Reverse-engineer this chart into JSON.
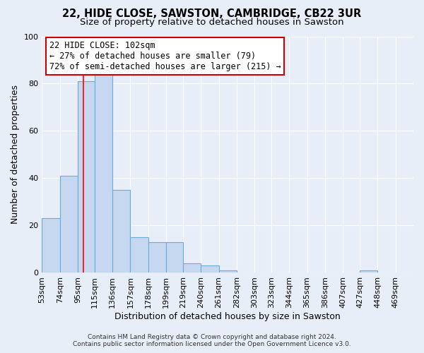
{
  "title": "22, HIDE CLOSE, SAWSTON, CAMBRIDGE, CB22 3UR",
  "subtitle": "Size of property relative to detached houses in Sawston",
  "xlabel": "Distribution of detached houses by size in Sawston",
  "ylabel": "Number of detached properties",
  "bar_labels": [
    "53sqm",
    "74sqm",
    "95sqm",
    "115sqm",
    "136sqm",
    "157sqm",
    "178sqm",
    "199sqm",
    "219sqm",
    "240sqm",
    "261sqm",
    "282sqm",
    "303sqm",
    "323sqm",
    "344sqm",
    "365sqm",
    "386sqm",
    "407sqm",
    "427sqm",
    "448sqm",
    "469sqm"
  ],
  "bar_values": [
    23,
    41,
    81,
    84,
    35,
    15,
    13,
    13,
    4,
    3,
    1,
    0,
    0,
    0,
    0,
    0,
    0,
    0,
    1,
    0,
    0
  ],
  "bar_color": "#c5d8f0",
  "bar_edge_color": "#6aaad4",
  "ylim": [
    0,
    100
  ],
  "yticks": [
    0,
    20,
    40,
    60,
    80,
    100
  ],
  "red_line_x": 102,
  "bin_edges": [
    53,
    74,
    95,
    115,
    136,
    157,
    178,
    199,
    219,
    240,
    261,
    282,
    303,
    323,
    344,
    365,
    386,
    407,
    427,
    448,
    469,
    490
  ],
  "annotation_line1": "22 HIDE CLOSE: 102sqm",
  "annotation_line2": "← 27% of detached houses are smaller (79)",
  "annotation_line3": "72% of semi-detached houses are larger (215) →",
  "annotation_box_color": "#ffffff",
  "annotation_border_color": "#cc0000",
  "footer_line1": "Contains HM Land Registry data © Crown copyright and database right 2024.",
  "footer_line2": "Contains public sector information licensed under the Open Government Licence v3.0.",
  "background_color": "#e8eef8",
  "grid_color": "#ffffff",
  "title_fontsize": 10.5,
  "subtitle_fontsize": 9.5,
  "axis_label_fontsize": 9,
  "tick_fontsize": 8,
  "annotation_fontsize": 8.5,
  "footer_fontsize": 6.5
}
